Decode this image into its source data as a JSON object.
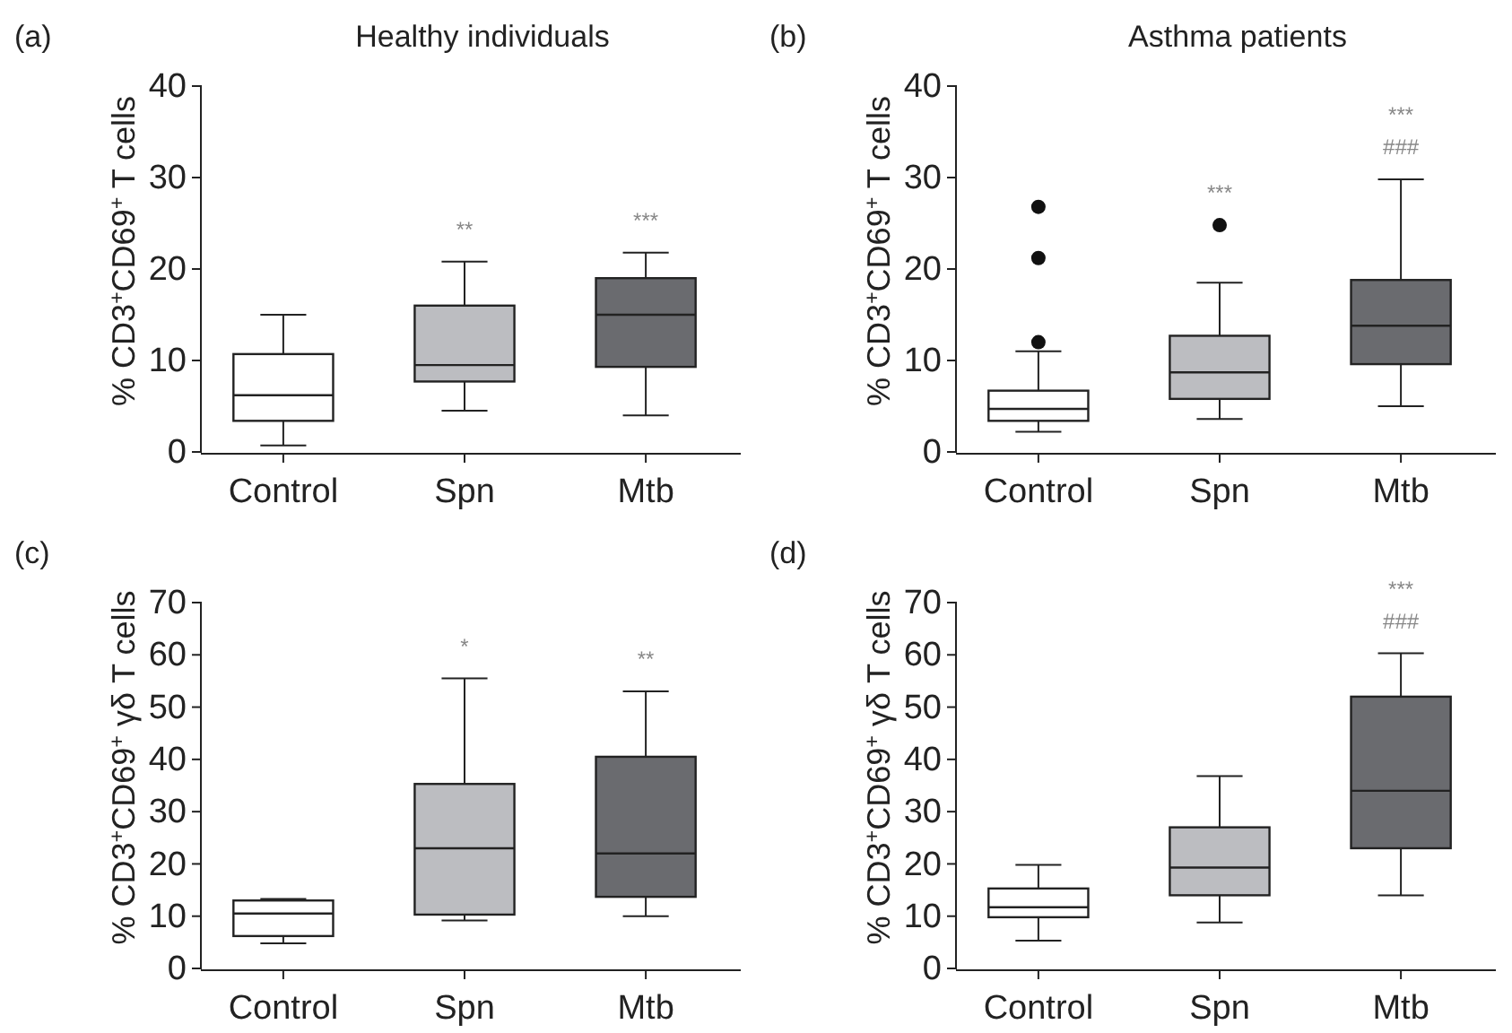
{
  "chart_data": [
    {
      "type": "box",
      "title": "Healthy individuals",
      "ylabel": "% CD3$^{+}$CD69$^{+}$ T cells",
      "categories": [
        "Control",
        "Spn",
        "Mtb"
      ],
      "colors": [
        "#ffffff",
        "#bcbdc1",
        "#6a6b6f"
      ],
      "boxes": [
        {
          "low": 0.7,
          "q1": 3.4,
          "median": 6.2,
          "q3": 10.7,
          "high": 15
        },
        {
          "low": 4.5,
          "q1": 7.7,
          "median": 9.5,
          "q3": 16,
          "high": 20.8
        },
        {
          "low": 4,
          "q1": 9.3,
          "median": 15,
          "q3": 19,
          "high": 21.8
        }
      ],
      "ylim": [
        0,
        40
      ],
      "yticks": [
        0,
        10,
        20,
        30,
        40
      ],
      "annotations": [
        "(a)",
        "**",
        "***"
      ]
    },
    {
      "type": "box",
      "title": "Asthma patients",
      "ylabel": "% CD3$^{+}$CD69$^{+}$ T cells",
      "categories": [
        "Control",
        "Spn",
        "Mtb"
      ],
      "colors": [
        "#ffffff",
        "#bcbdc1",
        "#6a6b6f"
      ],
      "boxes": [
        {
          "low": 2.2,
          "q1": 3.4,
          "median": 4.7,
          "q3": 6.7,
          "high": 11,
          "outliers": [
            12,
            21.2,
            26.8
          ]
        },
        {
          "low": 3.6,
          "q1": 5.8,
          "median": 8.7,
          "q3": 12.7,
          "high": 18.5,
          "outliers": [
            24.8
          ]
        },
        {
          "low": 5,
          "q1": 9.6,
          "median": 13.8,
          "q3": 18.8,
          "high": 29.8
        }
      ],
      "ylim": [
        0,
        40
      ],
      "yticks": [
        0,
        10,
        20,
        30,
        40
      ],
      "annotations": [
        "(b)",
        "***",
        "***\n###"
      ]
    },
    {
      "type": "box",
      "ylabel": "% CD3$^{+}$CD69$^{+}$ γδ T cells",
      "categories": [
        "Control",
        "Spn",
        "Mtb"
      ],
      "colors": [
        "#ffffff",
        "#bcbdc1",
        "#6a6b6f"
      ],
      "boxes": [
        {
          "low": 4.8,
          "q1": 6.2,
          "median": 10.5,
          "q3": 13,
          "high": 13.3
        },
        {
          "low": 9.2,
          "q1": 10.3,
          "median": 23,
          "q3": 35.3,
          "high": 55.5
        },
        {
          "low": 10,
          "q1": 13.7,
          "median": 22,
          "q3": 40.5,
          "high": 53
        }
      ],
      "ylim": [
        0,
        70
      ],
      "yticks": [
        0,
        10,
        20,
        30,
        40,
        50,
        60,
        70
      ],
      "annotations": [
        "(c)",
        "*",
        "**"
      ]
    },
    {
      "type": "box",
      "ylabel": "% CD3$^{+}$CD69$^{+}$ γδ T cells",
      "categories": [
        "Control",
        "Spn",
        "Mtb"
      ],
      "colors": [
        "#ffffff",
        "#bcbdc1",
        "#6a6b6f"
      ],
      "boxes": [
        {
          "low": 5.3,
          "q1": 9.8,
          "median": 11.7,
          "q3": 15.3,
          "high": 19.8
        },
        {
          "low": 8.8,
          "q1": 14,
          "median": 19.3,
          "q3": 27,
          "high": 36.8
        },
        {
          "low": 14,
          "q1": 23,
          "median": 34,
          "q3": 52,
          "high": 60.3
        }
      ],
      "ylim": [
        0,
        70
      ],
      "yticks": [
        0,
        10,
        20,
        30,
        40,
        50,
        60,
        70
      ],
      "annotations": [
        "(d)",
        "***\n###"
      ]
    }
  ]
}
